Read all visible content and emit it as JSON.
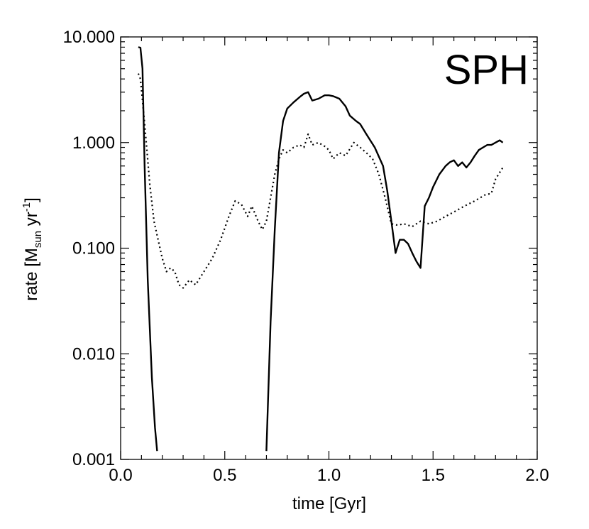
{
  "chart_data": {
    "type": "line",
    "title": "SPH",
    "xlabel": "time [Gyr]",
    "ylabel": {
      "prefix": "rate [M",
      "subscript": "sun",
      "middle": " yr",
      "superscript": "-1",
      "suffix": "]"
    },
    "xlim": [
      0.0,
      2.0
    ],
    "ylim": [
      0.001,
      10.0
    ],
    "yscale": "log",
    "x_ticks": [
      0.0,
      0.5,
      1.0,
      1.5,
      2.0
    ],
    "x_tick_labels": [
      "0.0",
      "0.5",
      "1.0",
      "1.5",
      "2.0"
    ],
    "y_ticks": [
      0.001,
      0.01,
      0.1,
      1.0,
      10.0
    ],
    "y_tick_labels": [
      "0.001",
      "0.010",
      "0.100",
      "1.000",
      "10.000"
    ],
    "grid": false,
    "legend": "none",
    "series": [
      {
        "name": "solid",
        "style": "solid",
        "x": [
          0.085,
          0.095,
          0.105,
          0.115,
          0.13,
          0.15,
          0.165,
          0.175,
          0.7,
          0.72,
          0.74,
          0.76,
          0.78,
          0.8,
          0.83,
          0.86,
          0.88,
          0.9,
          0.92,
          0.95,
          0.98,
          1.0,
          1.02,
          1.05,
          1.08,
          1.1,
          1.13,
          1.15,
          1.18,
          1.22,
          1.26,
          1.28,
          1.3,
          1.32,
          1.34,
          1.36,
          1.38,
          1.4,
          1.42,
          1.44,
          1.46,
          1.48,
          1.5,
          1.53,
          1.56,
          1.58,
          1.6,
          1.62,
          1.64,
          1.66,
          1.68,
          1.7,
          1.72,
          1.74,
          1.76,
          1.78,
          1.8,
          1.82,
          1.835
        ],
        "y": [
          8.0,
          7.9,
          5.0,
          0.6,
          0.05,
          0.006,
          0.002,
          0.0012,
          0.0012,
          0.02,
          0.15,
          0.8,
          1.6,
          2.1,
          2.4,
          2.7,
          2.9,
          3.0,
          2.5,
          2.6,
          2.8,
          2.8,
          2.75,
          2.6,
          2.2,
          1.8,
          1.6,
          1.5,
          1.2,
          0.9,
          0.6,
          0.35,
          0.18,
          0.09,
          0.12,
          0.12,
          0.11,
          0.09,
          0.075,
          0.065,
          0.25,
          0.3,
          0.38,
          0.5,
          0.6,
          0.65,
          0.68,
          0.6,
          0.65,
          0.58,
          0.65,
          0.75,
          0.85,
          0.9,
          0.95,
          0.95,
          1.0,
          1.05,
          1.0
        ]
      },
      {
        "name": "dotted",
        "style": "dotted",
        "x": [
          0.085,
          0.095,
          0.105,
          0.115,
          0.125,
          0.14,
          0.16,
          0.18,
          0.2,
          0.22,
          0.24,
          0.26,
          0.28,
          0.3,
          0.33,
          0.36,
          0.4,
          0.44,
          0.48,
          0.52,
          0.55,
          0.58,
          0.61,
          0.63,
          0.66,
          0.68,
          0.7,
          0.72,
          0.74,
          0.76,
          0.78,
          0.8,
          0.83,
          0.86,
          0.88,
          0.9,
          0.92,
          0.95,
          0.98,
          1.0,
          1.02,
          1.05,
          1.08,
          1.12,
          1.15,
          1.18,
          1.21,
          1.24,
          1.27,
          1.3,
          1.33,
          1.36,
          1.4,
          1.44,
          1.48,
          1.52,
          1.56,
          1.6,
          1.65,
          1.7,
          1.75,
          1.78,
          1.8,
          1.835
        ],
        "y": [
          4.5,
          4.0,
          2.5,
          1.5,
          0.9,
          0.4,
          0.18,
          0.12,
          0.08,
          0.06,
          0.065,
          0.06,
          0.045,
          0.042,
          0.05,
          0.045,
          0.06,
          0.08,
          0.12,
          0.2,
          0.28,
          0.26,
          0.2,
          0.25,
          0.18,
          0.15,
          0.18,
          0.3,
          0.5,
          0.7,
          0.85,
          0.8,
          0.9,
          0.95,
          0.9,
          1.2,
          0.95,
          1.0,
          0.92,
          0.85,
          0.7,
          0.8,
          0.75,
          1.0,
          0.9,
          0.8,
          0.7,
          0.5,
          0.3,
          0.17,
          0.165,
          0.17,
          0.16,
          0.18,
          0.17,
          0.18,
          0.2,
          0.22,
          0.25,
          0.28,
          0.32,
          0.33,
          0.45,
          0.58
        ]
      }
    ]
  }
}
